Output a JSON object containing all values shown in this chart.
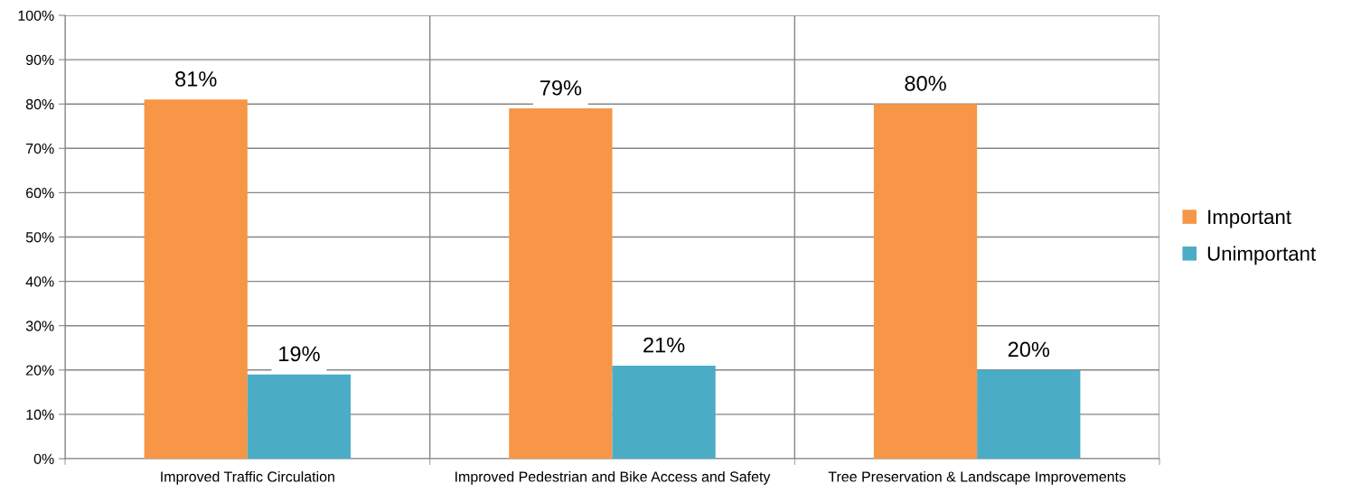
{
  "chart_data": {
    "type": "bar",
    "categories": [
      "Improved Traffic Circulation",
      "Improved Pedestrian and Bike Access and Safety",
      "Tree Preservation & Landscape Improvements"
    ],
    "series": [
      {
        "name": "Important",
        "color": "#f79646",
        "values": [
          81,
          79,
          80
        ]
      },
      {
        "name": "Unimportant",
        "color": "#4bacc6",
        "values": [
          19,
          21,
          20
        ]
      }
    ],
    "ylim": [
      0,
      100
    ],
    "yticks": [
      {
        "value": 0,
        "label": "0%"
      },
      {
        "value": 10,
        "label": "10%"
      },
      {
        "value": 20,
        "label": "20%"
      },
      {
        "value": 30,
        "label": "30%"
      },
      {
        "value": 40,
        "label": "40%"
      },
      {
        "value": 50,
        "label": "50%"
      },
      {
        "value": 60,
        "label": "60%"
      },
      {
        "value": 70,
        "label": "70%"
      },
      {
        "value": 80,
        "label": "80%"
      },
      {
        "value": 90,
        "label": "90%"
      },
      {
        "value": 100,
        "label": "100%"
      }
    ],
    "value_labels": [
      [
        "81%",
        "79%",
        "80%"
      ],
      [
        "19%",
        "21%",
        "20%"
      ]
    ],
    "grid": true,
    "legend": "right"
  }
}
